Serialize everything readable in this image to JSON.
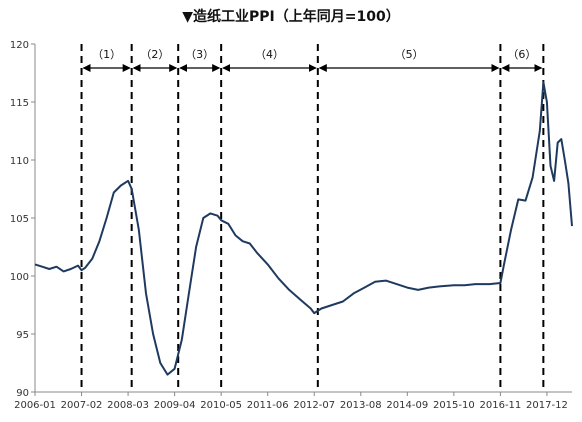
{
  "title": "▼造纸工业PPI（上年同月=100）",
  "chart_data": {
    "type": "line",
    "title": "▼造纸工业PPI（上年同月=100）",
    "xlabel": "",
    "ylabel": "",
    "ylim": [
      90,
      120
    ],
    "yticks": [
      90,
      95,
      100,
      105,
      110,
      115,
      120
    ],
    "xlim": [
      "2006-01",
      "2018-07"
    ],
    "xtick_labels": [
      "2006-01",
      "2007-02",
      "2008-03",
      "2009-04",
      "2010-05",
      "2011-06",
      "2012-07",
      "2013-08",
      "2014-09",
      "2015-10",
      "2016-11",
      "2017-12"
    ],
    "grid": false,
    "line_color": "#1f3a5f",
    "series": [
      {
        "x": [
          "2006-01",
          "2006-03",
          "2006-05",
          "2006-07",
          "2006-09",
          "2006-11",
          "2007-01",
          "2007-02",
          "2007-03",
          "2007-05",
          "2007-07",
          "2007-09",
          "2007-11",
          "2008-01",
          "2008-03",
          "2008-04",
          "2008-06",
          "2008-08",
          "2008-10",
          "2008-12",
          "2009-02",
          "2009-04",
          "2009-06",
          "2009-08",
          "2009-10",
          "2009-12",
          "2010-02",
          "2010-04",
          "2010-05",
          "2010-07",
          "2010-09",
          "2010-11",
          "2011-01",
          "2011-03",
          "2011-06",
          "2011-09",
          "2011-12",
          "2012-03",
          "2012-06",
          "2012-07",
          "2012-09",
          "2012-12",
          "2013-03",
          "2013-06",
          "2013-09",
          "2013-12",
          "2014-03",
          "2014-06",
          "2014-09",
          "2014-12",
          "2015-03",
          "2015-06",
          "2015-10",
          "2016-01",
          "2016-04",
          "2016-08",
          "2016-11",
          "2016-12",
          "2017-02",
          "2017-04",
          "2017-06",
          "2017-08",
          "2017-10",
          "2017-11",
          "2017-12",
          "2018-01",
          "2018-02",
          "2018-03",
          "2018-04",
          "2018-05",
          "2018-06",
          "2018-07"
        ],
        "values": [
          101.0,
          100.8,
          100.6,
          100.8,
          100.4,
          100.6,
          100.9,
          100.5,
          100.7,
          101.5,
          103.0,
          105.0,
          107.2,
          107.8,
          108.2,
          107.5,
          104.0,
          98.5,
          95.0,
          92.5,
          91.5,
          92.0,
          94.5,
          98.5,
          102.5,
          105.0,
          105.4,
          105.2,
          104.8,
          104.5,
          103.5,
          103.0,
          102.8,
          102.0,
          101.0,
          99.8,
          98.8,
          98.0,
          97.2,
          96.8,
          97.2,
          97.5,
          97.8,
          98.5,
          99.0,
          99.5,
          99.6,
          99.3,
          99.0,
          98.8,
          99.0,
          99.1,
          99.2,
          99.2,
          99.3,
          99.3,
          99.4,
          101.0,
          104.0,
          106.6,
          106.5,
          108.5,
          112.5,
          116.7,
          115.0,
          109.5,
          108.2,
          111.5,
          111.8,
          110.0,
          108.0,
          104.3
        ]
      }
    ],
    "periods": [
      {
        "label": "（1）",
        "start": "2007-02",
        "end": "2008-04"
      },
      {
        "label": "（2）",
        "start": "2008-04",
        "end": "2009-05"
      },
      {
        "label": "（3）",
        "start": "2009-05",
        "end": "2010-05"
      },
      {
        "label": "（4）",
        "start": "2010-05",
        "end": "2012-08"
      },
      {
        "label": "（5）",
        "start": "2012-08",
        "end": "2016-11"
      },
      {
        "label": "（6）",
        "start": "2016-11",
        "end": "2017-11"
      }
    ],
    "period_boundaries": [
      "2007-02",
      "2008-04",
      "2009-05",
      "2010-05",
      "2012-08",
      "2016-11",
      "2017-11"
    ]
  }
}
